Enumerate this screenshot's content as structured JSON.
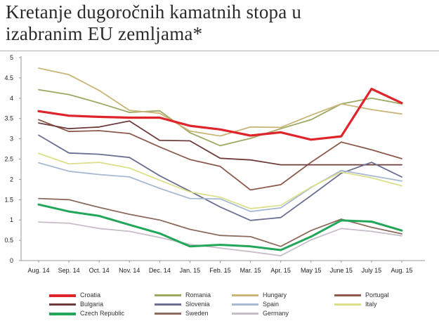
{
  "title_line1": "Kretanje dugoročnih kamatnih stopa u",
  "title_line2": "izabranim EU zemljama*",
  "chart_data": {
    "type": "line",
    "categories": [
      "Aug. 14",
      "Sep. 14",
      "Oct. 14",
      "Nov. 14",
      "Dec. 14",
      "Jan. 15",
      "Feb. 15",
      "Mar. 15",
      "Apr. 15",
      "May 15",
      "June 15",
      "July 15",
      "Aug. 15"
    ],
    "ylim": [
      0,
      5
    ],
    "yticks": [
      "0",
      "0.5",
      "1",
      "1.5",
      "2",
      "2.5",
      "3",
      "3.5",
      "4",
      "4.5",
      "5"
    ],
    "grid": false,
    "legend_position": "bottom",
    "series": [
      {
        "name": "Croatia",
        "color": "#e0242b",
        "width": 3.2,
        "values": [
          3.68,
          3.57,
          3.54,
          3.52,
          3.52,
          3.32,
          3.23,
          3.08,
          3.16,
          2.98,
          3.06,
          4.23,
          3.88
        ]
      },
      {
        "name": "Romania",
        "color": "#9ea863",
        "width": 1.8,
        "values": [
          4.21,
          4.09,
          3.88,
          3.65,
          3.69,
          3.15,
          2.83,
          3.01,
          3.25,
          3.47,
          3.86,
          4.0,
          3.86
        ]
      },
      {
        "name": "Hungary",
        "color": "#c8b577",
        "width": 1.8,
        "values": [
          4.74,
          4.58,
          4.19,
          3.7,
          3.63,
          3.19,
          3.07,
          3.29,
          3.28,
          3.58,
          3.86,
          3.72,
          3.61
        ]
      },
      {
        "name": "Portugal",
        "color": "#8b5a4c",
        "width": 1.8,
        "values": [
          3.47,
          3.18,
          3.2,
          3.13,
          2.8,
          2.49,
          2.32,
          1.74,
          1.87,
          2.42,
          2.92,
          2.73,
          2.51
        ]
      },
      {
        "name": "Bulgaria",
        "color": "#6e3c3c",
        "width": 1.8,
        "values": [
          3.39,
          3.25,
          3.29,
          3.44,
          2.96,
          2.95,
          2.52,
          2.48,
          2.36,
          2.36,
          2.36,
          2.36,
          2.36
        ]
      },
      {
        "name": "Slovenia",
        "color": "#6b6f92",
        "width": 1.8,
        "values": [
          3.09,
          2.65,
          2.62,
          2.54,
          2.09,
          1.71,
          1.32,
          0.99,
          1.06,
          1.6,
          2.15,
          2.42,
          2.06
        ]
      },
      {
        "name": "Spain",
        "color": "#a8b9d4",
        "width": 1.8,
        "values": [
          2.41,
          2.2,
          2.12,
          2.06,
          1.78,
          1.53,
          1.52,
          1.21,
          1.3,
          1.8,
          2.22,
          2.09,
          1.96
        ]
      },
      {
        "name": "Italy",
        "color": "#dce08a",
        "width": 1.8,
        "values": [
          2.64,
          2.38,
          2.42,
          2.28,
          1.98,
          1.69,
          1.56,
          1.28,
          1.36,
          1.81,
          2.18,
          2.04,
          1.84
        ]
      },
      {
        "name": "Czech Republic",
        "color": "#22a659",
        "width": 3.0,
        "values": [
          1.38,
          1.21,
          1.1,
          0.88,
          0.67,
          0.35,
          0.39,
          0.35,
          0.26,
          0.59,
          0.99,
          0.96,
          0.74
        ]
      },
      {
        "name": "Sweden",
        "color": "#8c6b5e",
        "width": 1.8,
        "values": [
          1.53,
          1.5,
          1.31,
          1.14,
          1.0,
          0.77,
          0.62,
          0.59,
          0.35,
          0.74,
          1.02,
          0.82,
          0.66
        ]
      },
      {
        "name": "Germany",
        "color": "#c8bec8",
        "width": 1.8,
        "values": [
          0.95,
          0.92,
          0.79,
          0.72,
          0.57,
          0.4,
          0.31,
          0.22,
          0.12,
          0.51,
          0.79,
          0.72,
          0.61
        ]
      }
    ]
  }
}
